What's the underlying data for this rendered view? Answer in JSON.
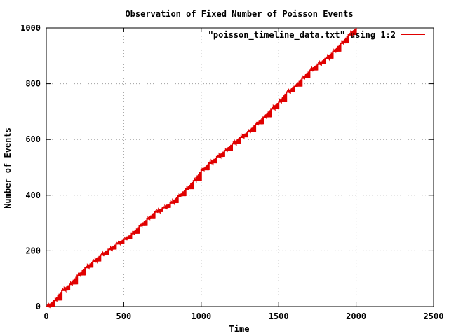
{
  "chart_data": {
    "type": "line",
    "title": "Observation of Fixed Number of Poisson Events",
    "xlabel": "Time",
    "ylabel": "Number of Events",
    "xlim": [
      0,
      2500
    ],
    "ylim": [
      0,
      1000
    ],
    "x_ticks": [
      "0",
      "500",
      "1000",
      "1500",
      "2000",
      "2500"
    ],
    "y_ticks": [
      "0",
      "200",
      "400",
      "600",
      "800",
      "1000"
    ],
    "grid": true,
    "legend_position": "top-right",
    "series": [
      {
        "name": "\"poisson_timeline_data.txt\" using 1:2",
        "color": "#e00000",
        "x": [
          0,
          50,
          100,
          150,
          200,
          250,
          300,
          350,
          400,
          450,
          500,
          550,
          600,
          650,
          700,
          750,
          800,
          850,
          900,
          950,
          1000,
          1050,
          1100,
          1150,
          1200,
          1250,
          1300,
          1350,
          1400,
          1450,
          1500,
          1550,
          1600,
          1650,
          1700,
          1750,
          1800,
          1850,
          1900,
          1950,
          2000
        ],
        "y": [
          0,
          22,
          58,
          80,
          112,
          140,
          162,
          185,
          205,
          225,
          242,
          262,
          290,
          315,
          340,
          355,
          372,
          397,
          422,
          452,
          490,
          515,
          538,
          560,
          585,
          608,
          628,
          655,
          680,
          710,
          735,
          770,
          790,
          820,
          848,
          870,
          890,
          915,
          945,
          975,
          1000
        ]
      }
    ]
  }
}
